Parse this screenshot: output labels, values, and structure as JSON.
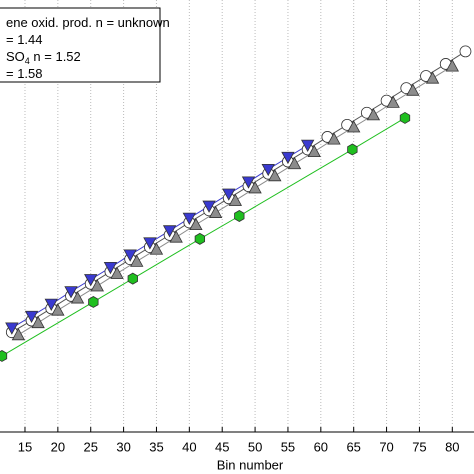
{
  "chart_data": {
    "type": "line",
    "xlabel": "Bin number",
    "xlim": [
      11.2,
      83.3
    ],
    "ylim": [
      0,
      100
    ],
    "xticks": [
      15,
      20,
      25,
      30,
      35,
      40,
      45,
      50,
      55,
      60,
      65,
      70,
      75,
      80
    ],
    "grid": true,
    "legend_position": "upper left",
    "legend": [
      {
        "text": "ene oxid. prod. n = unknown"
      },
      {
        "text": "= 1.44"
      },
      {
        "text": "SO",
        "sub": "4",
        "after": " n = 1.52"
      },
      {
        "text": "= 1.58"
      }
    ],
    "series": [
      {
        "marker": "circle",
        "color": "#ffffff",
        "x": [
          13,
          16,
          19,
          22,
          25,
          28,
          31,
          34,
          37,
          40,
          43,
          46,
          49,
          52,
          55,
          58,
          61,
          64,
          67,
          70,
          73,
          76,
          79,
          82
        ],
        "values": [
          23.1,
          25.8,
          28.6,
          31.5,
          34.3,
          37.1,
          40.0,
          42.8,
          45.6,
          48.5,
          51.3,
          54.1,
          56.9,
          59.8,
          62.6,
          65.4,
          68.3,
          71.1,
          73.9,
          76.7,
          79.6,
          82.4,
          85.2,
          88.1
        ]
      },
      {
        "marker": "triangle",
        "color": "#8c8c8c",
        "x": [
          14,
          17,
          20,
          23,
          26,
          29,
          32,
          35,
          38,
          41,
          44,
          47,
          50,
          53,
          56,
          59,
          62,
          65,
          68,
          71,
          74,
          77,
          80
        ],
        "values": [
          22.5,
          25.3,
          28.2,
          31.0,
          33.8,
          36.7,
          39.5,
          42.3,
          45.1,
          48.0,
          50.8,
          53.6,
          56.5,
          59.3,
          62.1,
          64.9,
          67.8,
          70.6,
          73.4,
          76.3,
          79.1,
          81.9,
          84.7
        ]
      },
      {
        "marker": "down-triangle",
        "color": "#3a3ad0",
        "x": [
          13,
          16,
          19,
          22,
          25,
          28,
          31,
          34,
          37,
          40,
          43,
          46,
          49,
          52,
          55,
          58
        ],
        "values": [
          24.1,
          26.8,
          29.6,
          32.5,
          35.3,
          38.1,
          41.0,
          43.8,
          46.6,
          49.5,
          52.3,
          55.1,
          57.9,
          60.8,
          63.6,
          66.4
        ]
      },
      {
        "marker": "hexagon",
        "color": "#1fbf1f",
        "x": [
          11.5,
          25.4,
          31.4,
          41.6,
          47.6,
          64.8,
          72.8
        ],
        "values": [
          17.6,
          30.1,
          35.5,
          44.7,
          50.0,
          65.4,
          72.7
        ]
      }
    ]
  }
}
